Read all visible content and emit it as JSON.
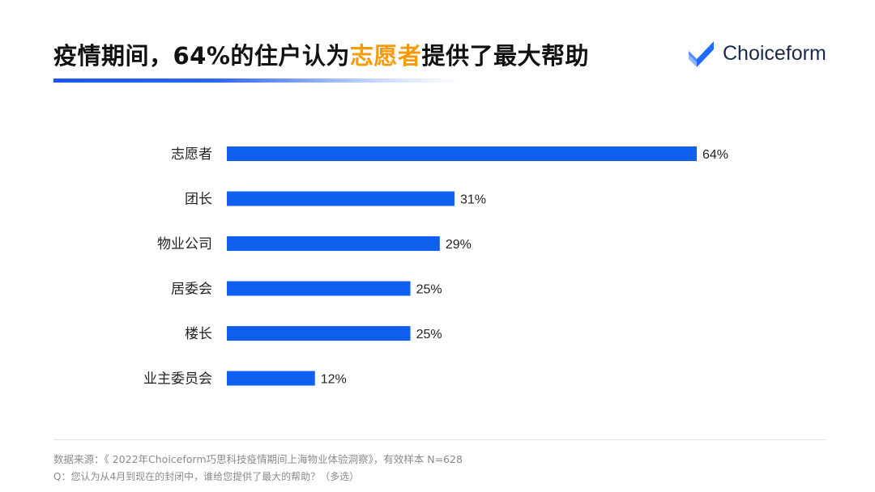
{
  "header": {
    "title_prefix": "疫情期间，64%的住户认为",
    "title_highlight": "志愿者",
    "title_suffix": "提供了最大帮助",
    "logo_text": "Choiceform"
  },
  "colors": {
    "bar": "#0f5ff0",
    "highlight": "#f59a0c",
    "underline": "#1a56f0",
    "logo_blue": "#1f6bff"
  },
  "chart_data": {
    "type": "bar",
    "orientation": "horizontal",
    "categories": [
      "志愿者",
      "团长",
      "物业公司",
      "居委会",
      "楼长",
      "业主委员会"
    ],
    "values": [
      64,
      31,
      29,
      25,
      25,
      12
    ],
    "value_labels": [
      "64%",
      "31%",
      "29%",
      "25%",
      "25%",
      "12%"
    ],
    "xlim": [
      0,
      64
    ],
    "grid": false,
    "legend": "none"
  },
  "footnotes": {
    "source": "数据来源：《 2022年Choiceform巧思科技疫情期间上海物业体验洞察》，有效样本 N=628",
    "question": "Q：您认为从4月到现在的封闭中，谁给您提供了最大的帮助？（多选）"
  }
}
